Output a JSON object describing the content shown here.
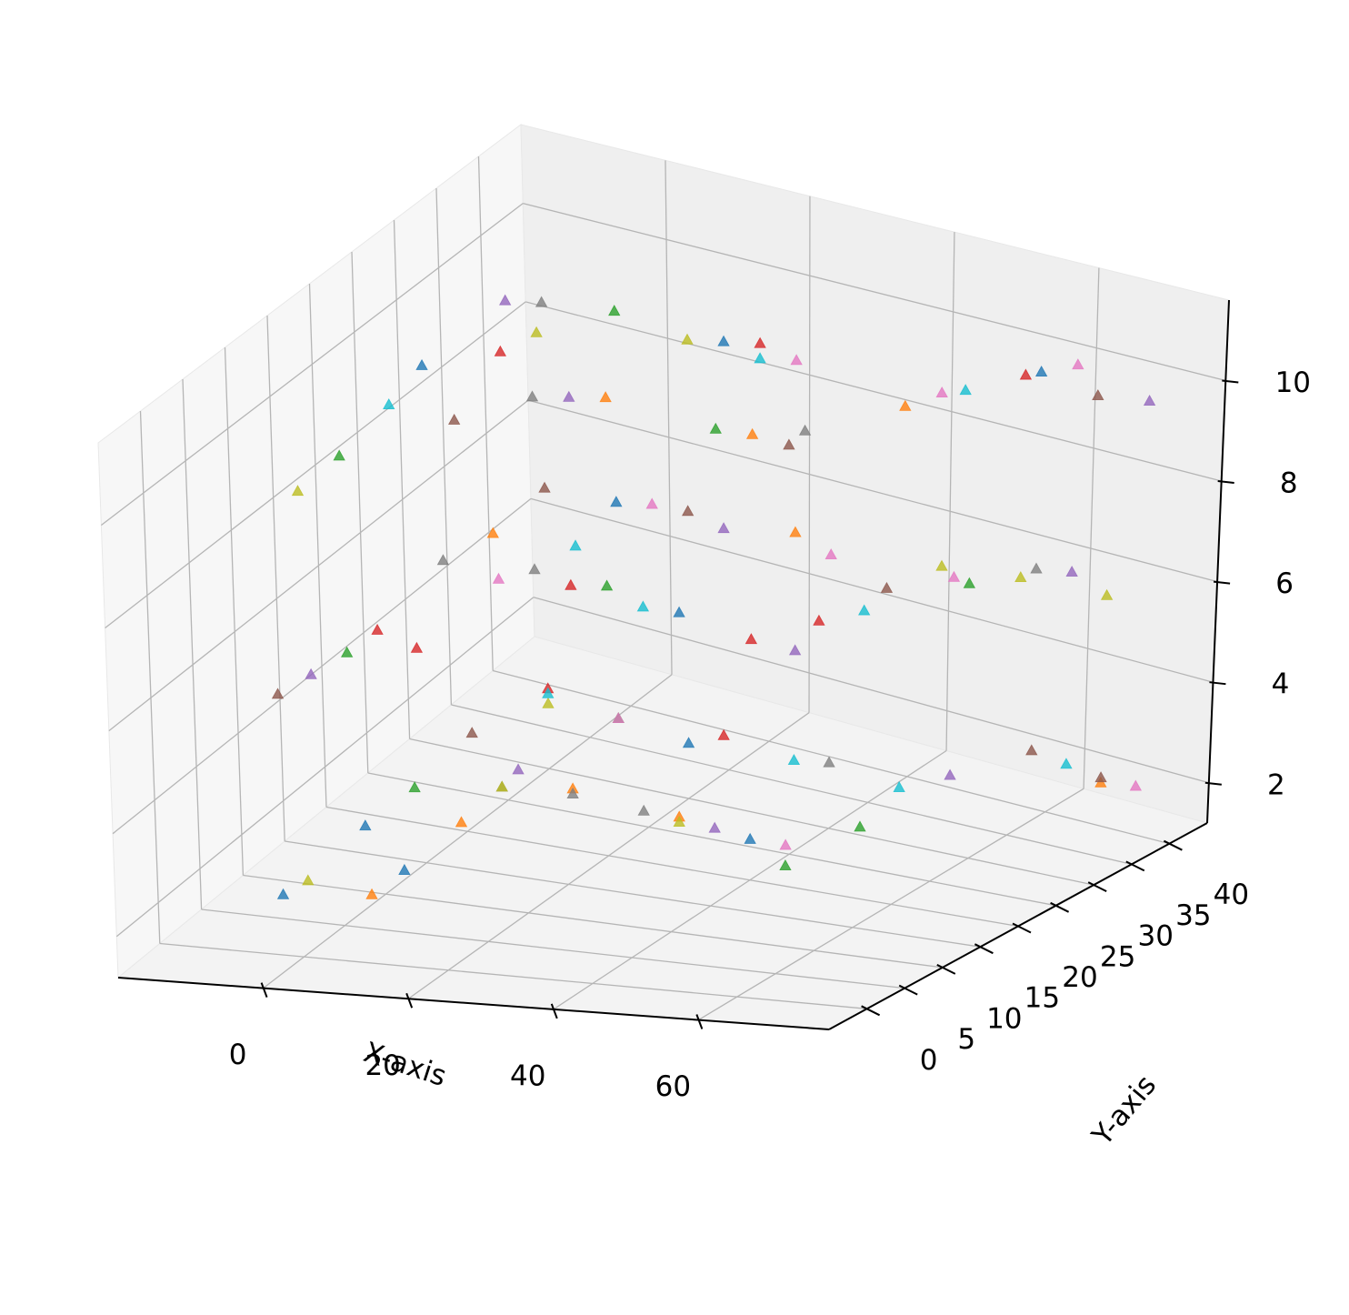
{
  "chart_data": {
    "type": "scatter3d",
    "marker": "triangle",
    "grid": true,
    "x_label": "X-axis",
    "y_label": "Y-axis",
    "xlim": [
      -20,
      78
    ],
    "ylim": [
      -5,
      45
    ],
    "zlim": [
      1.2,
      11.6
    ],
    "xticks": [
      0,
      20,
      40,
      60
    ],
    "yticks": [
      0,
      5,
      10,
      15,
      20,
      25,
      30,
      35,
      40
    ],
    "zticks": [
      2,
      4,
      6,
      8,
      10
    ],
    "series": [
      {
        "color": "#1f77b4",
        "x": [
          -5,
          -5,
          5,
          20,
          40,
          10,
          30,
          60,
          -5,
          25
        ],
        "y": [
          2,
          12,
          8,
          30,
          20,
          30,
          20,
          38,
          20,
          30
        ],
        "z": [
          2.1,
          2.2,
          2.0,
          2.3,
          2.0,
          6.8,
          6.2,
          10.1,
          10.3,
          10.4
        ]
      },
      {
        "color": "#ff7f0e",
        "x": [
          5,
          5,
          15,
          30,
          70,
          -5,
          35,
          20,
          40,
          50
        ],
        "y": [
          4,
          15,
          20,
          20,
          38,
          28,
          30,
          20,
          20,
          30
        ],
        "z": [
          2.0,
          2.1,
          2.4,
          2.2,
          2.3,
          6.0,
          6.9,
          10.2,
          9.9,
          9.8
        ]
      },
      {
        "color": "#2ca02c",
        "x": [
          -5,
          10,
          45,
          50,
          0,
          20,
          55,
          -5,
          10,
          35
        ],
        "y": [
          18,
          30,
          20,
          25,
          6,
          20,
          34,
          10,
          30,
          20
        ],
        "z": [
          2.2,
          2.5,
          1.6,
          2.0,
          6.4,
          6.5,
          6.1,
          9.7,
          10.6,
          9.9
        ]
      },
      {
        "color": "#d62728",
        "x": [
          0,
          25,
          -5,
          5,
          15,
          40,
          45,
          0,
          30,
          60
        ],
        "y": [
          30,
          30,
          14,
          10,
          20,
          20,
          24,
          25,
          30,
          36
        ],
        "z": [
          2.8,
          2.6,
          5.8,
          6.1,
          6.4,
          5.9,
          6.0,
          10.1,
          10.5,
          10.2
        ]
      },
      {
        "color": "#9467bd",
        "x": [
          5,
          35,
          55,
          -5,
          25,
          45,
          65,
          -5,
          15,
          75
        ],
        "y": [
          22,
          20,
          32,
          6,
          30,
          21,
          38,
          30,
          20,
          38
        ],
        "z": [
          2.3,
          2.1,
          2.5,
          5.9,
          6.7,
          5.7,
          6.3,
          10.4,
          10.1,
          10.0
        ]
      },
      {
        "color": "#8c564b",
        "x": [
          -5,
          60,
          70,
          0,
          -5,
          20,
          50,
          5,
          45,
          70
        ],
        "y": [
          25,
          38,
          38,
          30,
          2,
          30,
          28,
          15,
          20,
          36
        ],
        "z": [
          2.4,
          2.6,
          2.4,
          6.8,
          6.0,
          6.9,
          6.4,
          10.0,
          9.8,
          10.1
        ]
      },
      {
        "color": "#e377c2",
        "x": [
          10,
          45,
          75,
          15,
          40,
          55,
          5,
          35,
          55,
          65
        ],
        "y": [
          30,
          20,
          38,
          30,
          30,
          32,
          20,
          30,
          30,
          38
        ],
        "z": [
          2.5,
          2.0,
          2.4,
          6.9,
          6.6,
          6.4,
          6.3,
          10.3,
          10.2,
          10.4
        ]
      },
      {
        "color": "#7f7f7f",
        "x": [
          15,
          40,
          5,
          25,
          -5,
          10,
          60,
          0,
          10,
          45
        ],
        "y": [
          20,
          30,
          20,
          20,
          22,
          20,
          38,
          30,
          20,
          22
        ],
        "z": [
          2.3,
          2.5,
          2.2,
          2.2,
          6.2,
          6.6,
          6.2,
          10.5,
          10.0,
          9.9
        ]
      },
      {
        "color": "#bcbd22",
        "x": [
          -5,
          5,
          0,
          30,
          50,
          70,
          60,
          -5,
          5,
          20
        ],
        "y": [
          5,
          20,
          30,
          20,
          35,
          38,
          36,
          5,
          25,
          30
        ],
        "z": [
          2.0,
          2.2,
          2.5,
          2.1,
          6.2,
          6.0,
          6.2,
          9.6,
          10.6,
          10.3
        ]
      },
      {
        "color": "#17becf",
        "x": [
          0,
          35,
          50,
          65,
          48,
          10,
          25,
          30,
          -5,
          55
        ],
        "y": [
          30,
          30,
          30,
          38,
          27,
          25,
          20,
          30,
          16,
          33
        ],
        "z": [
          2.7,
          2.4,
          2.3,
          2.5,
          6.0,
          6.5,
          6.2,
          10.2,
          10.0,
          10.0
        ]
      }
    ]
  }
}
